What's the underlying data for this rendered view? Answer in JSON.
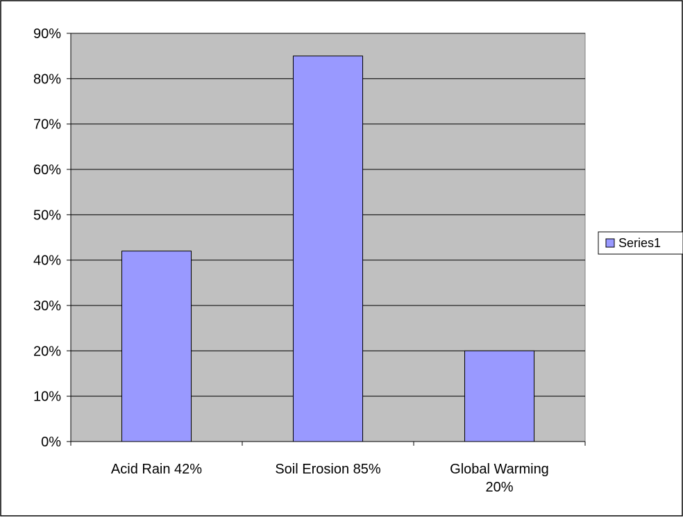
{
  "chart_data": {
    "type": "bar",
    "categories": [
      [
        "Acid Rain 42%"
      ],
      [
        "Soil Erosion 85%"
      ],
      [
        "Global Warming",
        "20%"
      ]
    ],
    "series": [
      {
        "name": "Series1",
        "values": [
          42,
          85,
          20
        ],
        "color": "#9999ff"
      }
    ],
    "ylim": [
      0,
      90
    ],
    "y_ticks": [
      "0%",
      "10%",
      "20%",
      "30%",
      "40%",
      "50%",
      "60%",
      "70%",
      "80%",
      "90%"
    ],
    "grid": true,
    "plot_background": "#c0c0c0",
    "legend": {
      "position": "right"
    }
  }
}
